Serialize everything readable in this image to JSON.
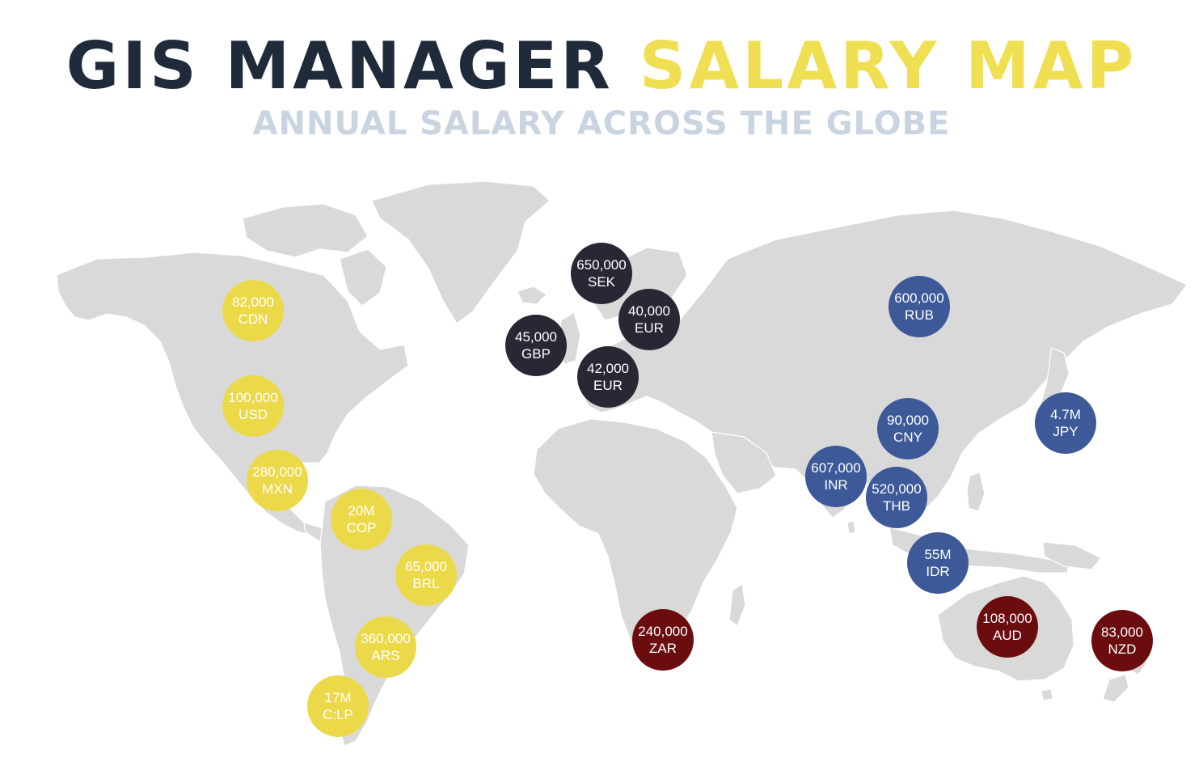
{
  "title": {
    "part1": "GIS MANAGER",
    "part2": "SALARY MAP"
  },
  "subtitle": "ANNUAL SALARY ACROSS THE GLOBE",
  "colors": {
    "americas": "#ecd94a",
    "europe": "#272833",
    "asia": "#3e5998",
    "africa_oceania": "#6b0d0f",
    "land": "#d9d9d9",
    "title_dark": "#1f2a3a",
    "title_accent": "#f0df52",
    "subtitle": "#c9d4e0"
  },
  "markers": [
    {
      "id": "cdn",
      "amount": "82,000",
      "currency": "CDN",
      "region": "americas"
    },
    {
      "id": "usd",
      "amount": "100,000",
      "currency": "USD",
      "region": "americas"
    },
    {
      "id": "mxn",
      "amount": "280,000",
      "currency": "MXN",
      "region": "americas"
    },
    {
      "id": "cop",
      "amount": "20M",
      "currency": "COP",
      "region": "americas"
    },
    {
      "id": "brl",
      "amount": "65,000",
      "currency": "BRL",
      "region": "americas"
    },
    {
      "id": "ars",
      "amount": "360,000",
      "currency": "ARS",
      "region": "americas"
    },
    {
      "id": "clp",
      "amount": "17M",
      "currency": "C:LP",
      "region": "americas"
    },
    {
      "id": "sek",
      "amount": "650,000",
      "currency": "SEK",
      "region": "europe"
    },
    {
      "id": "eur1",
      "amount": "40,000",
      "currency": "EUR",
      "region": "europe"
    },
    {
      "id": "gbp",
      "amount": "45,000",
      "currency": "GBP",
      "region": "europe"
    },
    {
      "id": "eur2",
      "amount": "42,000",
      "currency": "EUR",
      "region": "europe"
    },
    {
      "id": "rub",
      "amount": "600,000",
      "currency": "RUB",
      "region": "asia"
    },
    {
      "id": "cny",
      "amount": "90,000",
      "currency": "CNY",
      "region": "asia"
    },
    {
      "id": "jpy",
      "amount": "4.7M",
      "currency": "JPY",
      "region": "asia"
    },
    {
      "id": "inr",
      "amount": "607,000",
      "currency": "INR",
      "region": "asia"
    },
    {
      "id": "thb",
      "amount": "520,000",
      "currency": "THB",
      "region": "asia"
    },
    {
      "id": "idr",
      "amount": "55M",
      "currency": "IDR",
      "region": "asia"
    },
    {
      "id": "zar",
      "amount": "240,000",
      "currency": "ZAR",
      "region": "africa_oceania"
    },
    {
      "id": "aud",
      "amount": "108,000",
      "currency": "AUD",
      "region": "africa_oceania"
    },
    {
      "id": "nzd",
      "amount": "83,000",
      "currency": "NZD",
      "region": "africa_oceania"
    }
  ]
}
